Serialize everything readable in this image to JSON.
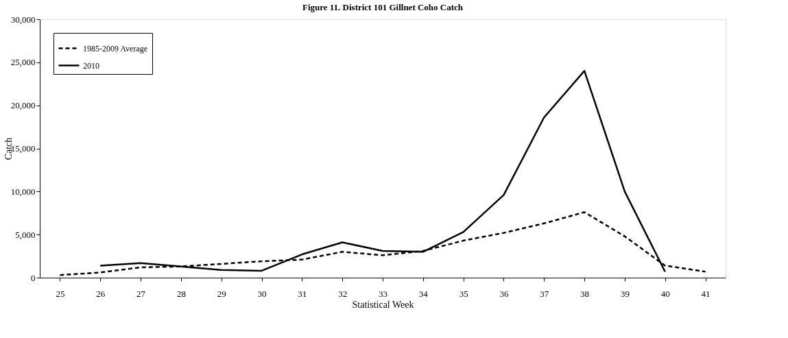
{
  "chart_data": {
    "type": "line",
    "title": "Figure 11. District 101 Gillnet Coho Catch",
    "xlabel": "Statistical Week",
    "ylabel": "Catch",
    "categories": [
      "25",
      "26",
      "27",
      "28",
      "29",
      "30",
      "31",
      "32",
      "33",
      "34",
      "35",
      "36",
      "37",
      "38",
      "39",
      "40",
      "41"
    ],
    "series": [
      {
        "name": "1985-2009 Average",
        "color": "#000000",
        "line_style": "dashed",
        "values": [
          300,
          600,
          1200,
          1300,
          1600,
          1900,
          2100,
          3000,
          2600,
          3100,
          4300,
          5200,
          6300,
          7600,
          4800,
          1400,
          700
        ]
      },
      {
        "name": "2010",
        "color": "#000000",
        "line_style": "solid",
        "values": [
          null,
          1400,
          1700,
          1300,
          900,
          800,
          2700,
          4100,
          3100,
          3000,
          5300,
          9600,
          18600,
          24000,
          10000,
          700,
          null
        ]
      }
    ],
    "ylim": [
      0,
      30000
    ],
    "yticks": [
      {
        "value": 0,
        "label": "0"
      },
      {
        "value": 5000,
        "label": "5,000"
      },
      {
        "value": 10000,
        "label": "10,000"
      },
      {
        "value": 15000,
        "label": "15,000"
      },
      {
        "value": 20000,
        "label": "20,000"
      },
      {
        "value": 25000,
        "label": "25,000"
      },
      {
        "value": 30000,
        "label": "30,000"
      }
    ],
    "grid": false,
    "legend": "top left",
    "marker": "none"
  }
}
